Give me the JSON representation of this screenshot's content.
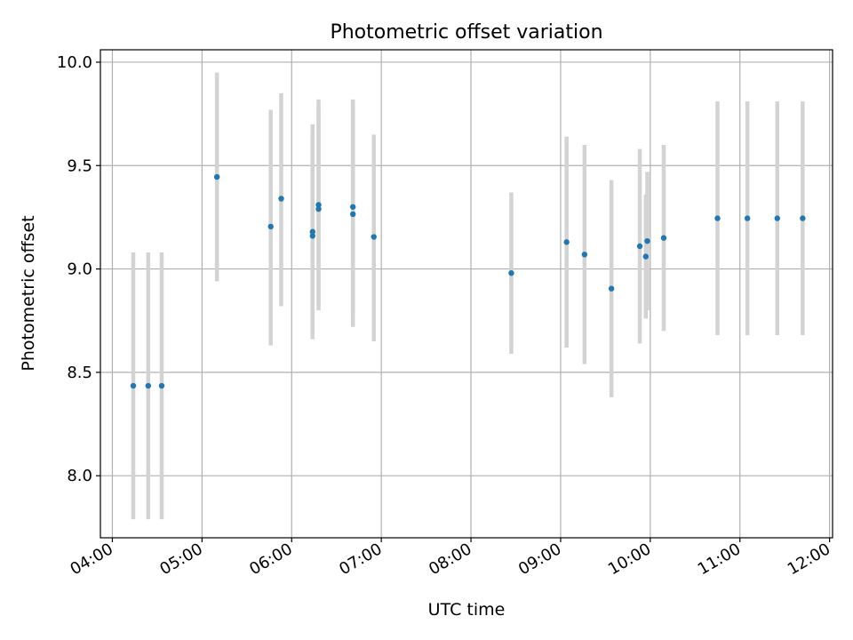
{
  "chart_data": {
    "type": "scatter",
    "title": "Photometric offset variation",
    "xlabel": "UTC time",
    "ylabel": "Photometric offset",
    "x_ticks": [
      "04:00",
      "05:00",
      "06:00",
      "07:00",
      "08:00",
      "09:00",
      "10:00",
      "11:00",
      "12:00"
    ],
    "y_ticks": [
      "8.0",
      "8.5",
      "9.0",
      "9.5",
      "10.0"
    ],
    "xlim": [
      "03:52",
      "12:02"
    ],
    "ylim": [
      7.7,
      10.06
    ],
    "grid": true,
    "errorbar_color": "#d3d3d3",
    "marker_color": "#1f77b4",
    "points": [
      {
        "t": "04:14",
        "y": 8.435,
        "lo": 7.79,
        "hi": 9.08
      },
      {
        "t": "04:24",
        "y": 8.435,
        "lo": 7.79,
        "hi": 9.08
      },
      {
        "t": "04:33",
        "y": 8.435,
        "lo": 7.79,
        "hi": 9.08
      },
      {
        "t": "05:10",
        "y": 9.445,
        "lo": 8.94,
        "hi": 9.95
      },
      {
        "t": "05:46",
        "y": 9.205,
        "lo": 8.63,
        "hi": 9.77
      },
      {
        "t": "05:53",
        "y": 9.34,
        "lo": 8.82,
        "hi": 9.85
      },
      {
        "t": "06:14",
        "y": 9.18,
        "lo": 8.66,
        "hi": 9.7
      },
      {
        "t": "06:14",
        "y": 9.16,
        "lo": 8.68,
        "hi": 9.65
      },
      {
        "t": "06:18",
        "y": 9.31,
        "lo": 8.8,
        "hi": 9.82
      },
      {
        "t": "06:18",
        "y": 9.29,
        "lo": 8.82,
        "hi": 9.76
      },
      {
        "t": "06:41",
        "y": 9.3,
        "lo": 8.78,
        "hi": 9.82
      },
      {
        "t": "06:41",
        "y": 9.265,
        "lo": 8.72,
        "hi": 9.8
      },
      {
        "t": "06:55",
        "y": 9.155,
        "lo": 8.65,
        "hi": 9.65
      },
      {
        "t": "08:27",
        "y": 8.98,
        "lo": 8.59,
        "hi": 9.37
      },
      {
        "t": "09:04",
        "y": 9.13,
        "lo": 8.62,
        "hi": 9.64
      },
      {
        "t": "09:16",
        "y": 9.07,
        "lo": 8.54,
        "hi": 9.6
      },
      {
        "t": "09:34",
        "y": 8.905,
        "lo": 8.38,
        "hi": 9.43
      },
      {
        "t": "09:53",
        "y": 9.11,
        "lo": 8.64,
        "hi": 9.58
      },
      {
        "t": "09:57",
        "y": 9.06,
        "lo": 8.76,
        "hi": 9.36
      },
      {
        "t": "09:58",
        "y": 9.135,
        "lo": 8.8,
        "hi": 9.47
      },
      {
        "t": "10:09",
        "y": 9.15,
        "lo": 8.7,
        "hi": 9.6
      },
      {
        "t": "10:45",
        "y": 9.245,
        "lo": 8.68,
        "hi": 9.81
      },
      {
        "t": "11:05",
        "y": 9.245,
        "lo": 8.68,
        "hi": 9.81
      },
      {
        "t": "11:25",
        "y": 9.245,
        "lo": 8.68,
        "hi": 9.81
      },
      {
        "t": "11:42",
        "y": 9.245,
        "lo": 8.68,
        "hi": 9.81
      }
    ]
  }
}
